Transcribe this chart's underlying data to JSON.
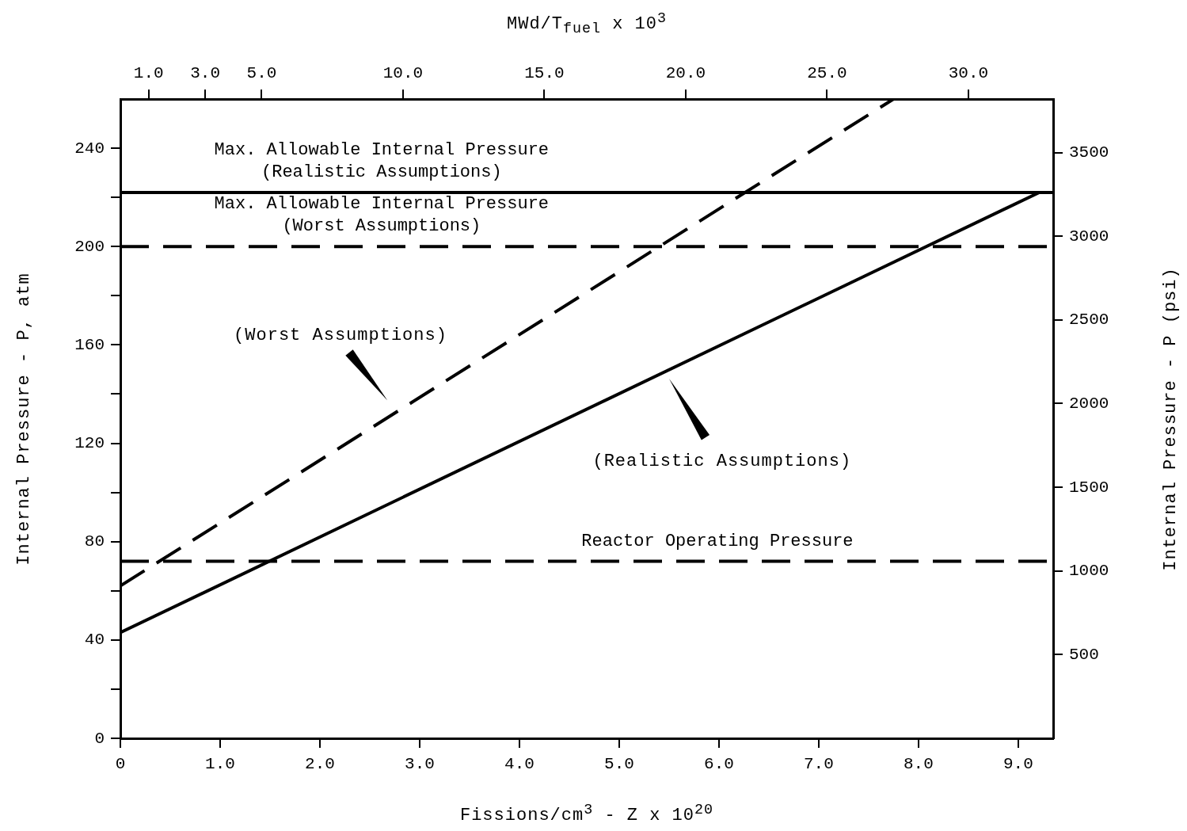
{
  "chart_data": {
    "type": "line",
    "xlabel": "Fissions/cm$^{3}$ - Z x 10$^{20}$",
    "x2label": "MWd/T$_{fuel}$ x 10$^{3}$",
    "ylabel": "Internal Pressure - P, atm",
    "y2label": "Internal Pressure - P (psi)",
    "xlim": [
      0,
      9.35
    ],
    "xticks": [
      0,
      {
        "value": 1,
        "label": "1.0"
      },
      {
        "value": 2,
        "label": "2.0"
      },
      {
        "value": 3,
        "label": "3.0"
      },
      {
        "value": 4,
        "label": "4.0"
      },
      {
        "value": 5,
        "label": "5.0"
      },
      {
        "value": 6,
        "label": "6.0"
      },
      {
        "value": 7,
        "label": "7.0"
      },
      {
        "value": 8,
        "label": "8.0"
      },
      {
        "value": 9,
        "label": "9.0"
      }
    ],
    "x2lim": [
      0,
      33
    ],
    "x2ticks": [
      {
        "value": 1,
        "label": "1.0"
      },
      {
        "value": 3,
        "label": "3.0"
      },
      {
        "value": 5,
        "label": "5.0"
      },
      {
        "value": 10,
        "label": "10.0"
      },
      {
        "value": 15,
        "label": "15.0"
      },
      {
        "value": 20,
        "label": "20.0"
      },
      {
        "value": 25,
        "label": "25.0"
      },
      {
        "value": 30,
        "label": "30.0"
      }
    ],
    "ylim": [
      0,
      260
    ],
    "yticks": [
      0,
      {
        "value": 20,
        "label": null
      },
      40,
      {
        "value": 60,
        "label": null
      },
      80,
      {
        "value": 100,
        "label": null
      },
      120,
      {
        "value": 140,
        "label": null
      },
      160,
      {
        "value": 180,
        "label": null
      },
      200,
      {
        "value": 220,
        "label": null
      },
      240
    ],
    "y2lim": [
      0,
      3820
    ],
    "y2ticks": [
      500,
      1000,
      1500,
      2000,
      2500,
      3000,
      3500
    ],
    "series": [
      {
        "type": "line",
        "x": [
          0,
          7.75
        ],
        "values": [
          62,
          260
        ],
        "color": "#000000",
        "line_style": "dashed"
      },
      {
        "type": "line",
        "x": [
          0,
          9.21
        ],
        "values": [
          43,
          222
        ],
        "color": "#000000",
        "line_style": "solid"
      }
    ],
    "ref_lines": [
      {
        "axis": "y",
        "value": 222,
        "label": "Max. Allowable Internal Pressure\n(Realistic Assumptions)",
        "line_style": "solid",
        "color": "#000000"
      },
      {
        "axis": "y",
        "value": 200,
        "label": "Max. Allowable Internal Pressure\n(Worst Assumptions)",
        "line_style": "dashed",
        "color": "#000000"
      },
      {
        "axis": "y",
        "value": 72,
        "label": "Reactor Operating Pressure",
        "line_style": "dashed",
        "color": "#000000"
      }
    ],
    "annotations": [
      "(Worst Assumptions)",
      "(Realistic Assumptions)"
    ],
    "marker": "none",
    "grid": false,
    "legend": false
  }
}
